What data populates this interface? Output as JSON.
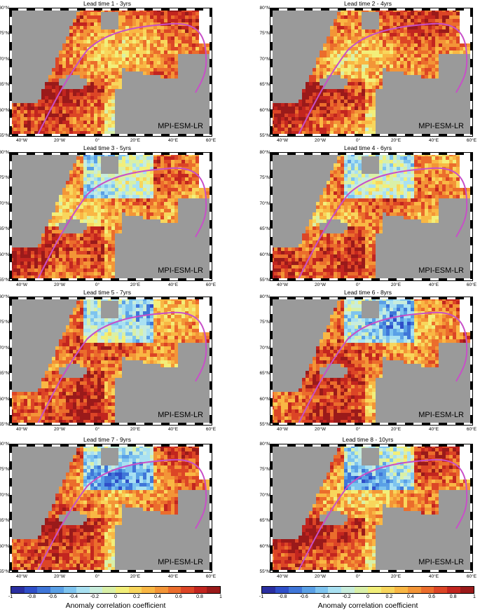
{
  "model_label": "MPI-ESM-LR",
  "panels": [
    {
      "title": "Lead time 1 - 3yrs"
    },
    {
      "title": "Lead time 2 - 4yrs"
    },
    {
      "title": "Lead time 3 - 5yrs"
    },
    {
      "title": "Lead time 4 - 6yrs"
    },
    {
      "title": "Lead time 5 - 7yrs"
    },
    {
      "title": "Lead time 6 - 8yrs"
    },
    {
      "title": "Lead time 7 - 9yrs"
    },
    {
      "title": "Lead time 8 - 10yrs"
    }
  ],
  "lat_labels": [
    "80°N",
    "75°N",
    "70°N",
    "65°N",
    "60°N",
    "55°N"
  ],
  "lon_labels": [
    "40°W",
    "20°W",
    "0°",
    "20°E",
    "40°E",
    "60°E"
  ],
  "colorbar": {
    "label": "Anomaly correlation coefficient",
    "ticks": [
      "-1",
      "-0.8",
      "-0.6",
      "-0.4",
      "-0.2",
      "0",
      "0.2",
      "0.4",
      "0.6",
      "0.8",
      "1"
    ],
    "colors": [
      "#2a2ea0",
      "#2f4fc9",
      "#3f76d8",
      "#5aa0e6",
      "#7ec4ef",
      "#a9e1f2",
      "#c8eddc",
      "#d9f0a8",
      "#f2ef7a",
      "#f8d65c",
      "#f9b744",
      "#f39537",
      "#eb6d2c",
      "#dc4526",
      "#c2251f",
      "#9a1a1a"
    ]
  },
  "colors": {
    "land": "#9a9a9a",
    "contour": "#000000",
    "ice_edge": "#c84fc8"
  }
}
